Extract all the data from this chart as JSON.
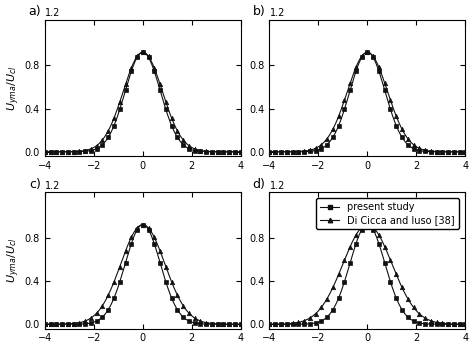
{
  "x_range": [
    -4,
    4
  ],
  "y_lim": [
    -0.04,
    1.22
  ],
  "x_ticks": [
    -4,
    -2,
    0,
    2,
    4
  ],
  "y_ticks": [
    0,
    0.4,
    0.8
  ],
  "panels": [
    "a",
    "b",
    "c",
    "d"
  ],
  "panel_label_fontsize": 9,
  "ylabel": "$U_{yma}/U_{cl}$",
  "series": [
    {
      "label": "present study",
      "marker": "s",
      "markersize": 3.2,
      "linewidth": 0.8,
      "color": "#111111"
    },
    {
      "label": "Di Cicca and Iuso [38]",
      "marker": "^",
      "markersize": 3.2,
      "linewidth": 0.8,
      "color": "#111111"
    }
  ],
  "gauss_params": [
    {
      "sigma1": 0.72,
      "amp1": 0.92,
      "sigma2": 0.8,
      "amp2": 0.92
    },
    {
      "sigma1": 0.72,
      "amp1": 0.92,
      "sigma2": 0.82,
      "amp2": 0.92
    },
    {
      "sigma1": 0.72,
      "amp1": 0.92,
      "sigma2": 0.9,
      "amp2": 0.92
    },
    {
      "sigma1": 0.72,
      "amp1": 0.92,
      "sigma2": 1.0,
      "amp2": 0.92
    }
  ],
  "n_markers": 35,
  "n_smooth": 300,
  "legend_panel": 3,
  "legend_fontsize": 7,
  "tick_fontsize": 7,
  "ylabel_fontsize": 8,
  "top_label": "1.2",
  "figsize": [
    4.74,
    3.49
  ],
  "dpi": 100
}
